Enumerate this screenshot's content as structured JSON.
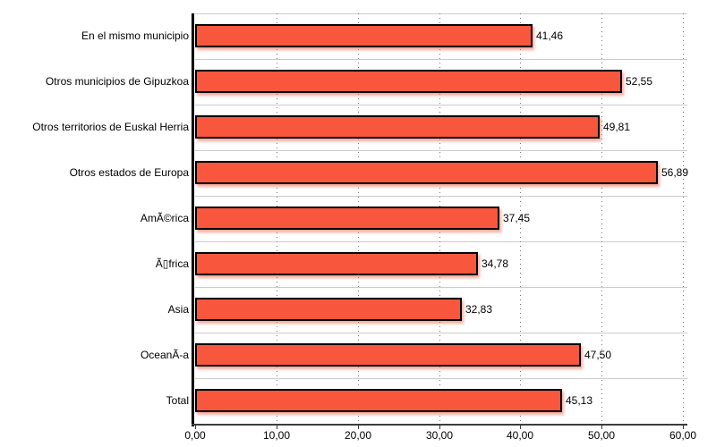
{
  "chart_data": {
    "type": "bar",
    "orientation": "horizontal",
    "title": "",
    "xlabel": "",
    "ylabel": "",
    "categories": [
      "En el mismo municipio",
      "Otros municipios de Gipuzkoa",
      "Otros territorios de Euskal Herria",
      "Otros estados de Europa",
      "AmÃ©rica",
      "Ã▯frica",
      "Asia",
      "OceanÃ-a",
      "Total"
    ],
    "values": [
      41.46,
      52.55,
      49.81,
      56.89,
      37.45,
      34.78,
      32.83,
      47.5,
      45.13
    ],
    "value_labels": [
      "41,46",
      "52,55",
      "49,81",
      "56,89",
      "37,45",
      "34,78",
      "32,83",
      "47,50",
      "45,13"
    ],
    "xlim": [
      0,
      60
    ],
    "x_tick_values": [
      0,
      10,
      20,
      30,
      40,
      50,
      60
    ],
    "x_tick_labels": [
      "0,00",
      "10,00",
      "20,00",
      "30,00",
      "40,00",
      "50,00",
      "60,00"
    ],
    "grid": "vertical-dotted",
    "legend": "none",
    "colors": {
      "bar_fill": "#f9573d",
      "bar_border": "#000000",
      "bar_shadow": "#eb644b",
      "row_separator": "#cccccc",
      "gridline": "#777777",
      "x_axis": "#3c3c3c",
      "y_axis": "#000000",
      "background": "#ffffff",
      "text": "#000000"
    }
  }
}
